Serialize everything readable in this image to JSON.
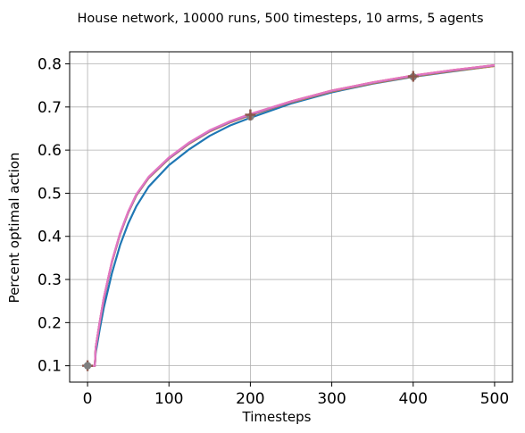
{
  "chart_data": {
    "type": "line",
    "title": "House network, 10000 runs, 500 timesteps, 10 arms, 5 agents",
    "xlabel": "Timesteps",
    "ylabel": "Percent optimal action",
    "xlim": [
      -22,
      522
    ],
    "ylim": [
      0.062,
      0.828
    ],
    "xticks": [
      0,
      100,
      200,
      300,
      400,
      500
    ],
    "yticks": [
      0.1,
      0.2,
      0.3,
      0.4,
      0.5,
      0.6,
      0.7,
      0.8
    ],
    "xtick_labels": [
      "0",
      "100",
      "200",
      "300",
      "400",
      "500"
    ],
    "ytick_labels": [
      "0.1",
      "0.2",
      "0.3",
      "0.4",
      "0.5",
      "0.6",
      "0.7",
      "0.8"
    ],
    "grid": true,
    "legend": "none",
    "series": [
      {
        "color": "#1f77b4",
        "x": [
          0,
          9,
          10,
          15,
          20,
          30,
          40,
          50,
          60,
          75,
          100,
          125,
          150,
          175,
          200,
          250,
          300,
          350,
          400,
          450,
          500
        ],
        "y": [
          0.1,
          0.1,
          0.13,
          0.185,
          0.235,
          0.315,
          0.38,
          0.43,
          0.47,
          0.515,
          0.565,
          0.602,
          0.633,
          0.657,
          0.675,
          0.708,
          0.734,
          0.754,
          0.77,
          0.783,
          0.795
        ]
      },
      {
        "color": "#ff7f0e",
        "x": [
          0,
          9,
          10,
          15,
          20,
          30,
          40,
          50,
          60,
          75,
          100,
          125,
          150,
          175,
          200,
          250,
          300,
          350,
          400,
          450,
          500
        ],
        "y": [
          0.1,
          0.1,
          0.14,
          0.2,
          0.255,
          0.34,
          0.405,
          0.455,
          0.495,
          0.535,
          0.58,
          0.615,
          0.643,
          0.664,
          0.681,
          0.711,
          0.736,
          0.755,
          0.771,
          0.784,
          0.795
        ]
      },
      {
        "color": "#2ca02c",
        "x": [
          0,
          9,
          10,
          15,
          20,
          30,
          40,
          50,
          60,
          75,
          100,
          125,
          150,
          175,
          200,
          250,
          300,
          350,
          400,
          450,
          500
        ],
        "y": [
          0.1,
          0.1,
          0.141,
          0.201,
          0.256,
          0.341,
          0.406,
          0.456,
          0.496,
          0.536,
          0.581,
          0.616,
          0.644,
          0.665,
          0.682,
          0.712,
          0.737,
          0.756,
          0.772,
          0.785,
          0.796
        ]
      },
      {
        "color": "#d62728",
        "x": [
          0,
          9,
          10,
          15,
          20,
          30,
          40,
          50,
          60,
          75,
          100,
          125,
          150,
          175,
          200,
          250,
          300,
          350,
          400,
          450,
          500
        ],
        "y": [
          0.1,
          0.1,
          0.142,
          0.202,
          0.257,
          0.342,
          0.407,
          0.457,
          0.497,
          0.537,
          0.582,
          0.617,
          0.645,
          0.666,
          0.683,
          0.713,
          0.738,
          0.757,
          0.773,
          0.786,
          0.797
        ]
      },
      {
        "color": "#9467bd",
        "x": [
          0,
          9,
          10,
          15,
          20,
          30,
          40,
          50,
          60,
          75,
          100,
          125,
          150,
          175,
          200,
          250,
          300,
          350,
          400,
          450,
          500
        ],
        "y": [
          0.1,
          0.1,
          0.141,
          0.201,
          0.256,
          0.341,
          0.406,
          0.456,
          0.496,
          0.536,
          0.581,
          0.616,
          0.644,
          0.665,
          0.682,
          0.712,
          0.737,
          0.756,
          0.772,
          0.785,
          0.796
        ]
      },
      {
        "color": "#e377c2",
        "x": [
          0,
          9,
          10,
          15,
          20,
          30,
          40,
          50,
          60,
          75,
          100,
          125,
          150,
          175,
          200,
          250,
          300,
          350,
          400,
          450,
          500
        ],
        "y": [
          0.1,
          0.1,
          0.142,
          0.203,
          0.258,
          0.343,
          0.408,
          0.458,
          0.498,
          0.538,
          0.583,
          0.618,
          0.646,
          0.667,
          0.684,
          0.713,
          0.738,
          0.757,
          0.773,
          0.786,
          0.797
        ]
      }
    ],
    "markers": [
      {
        "x": 0,
        "y": 0.1,
        "color": "#8c564b",
        "shape": "plus"
      },
      {
        "x": 0,
        "y": 0.1,
        "color": "#7f7f7f",
        "shape": "circle"
      },
      {
        "x": 200,
        "y": 0.677,
        "color": "#7f7f7f",
        "shape": "circle"
      },
      {
        "x": 200,
        "y": 0.682,
        "color": "#8c564b",
        "shape": "plus"
      },
      {
        "x": 400,
        "y": 0.77,
        "color": "#7f7f7f",
        "shape": "circle"
      },
      {
        "x": 400,
        "y": 0.771,
        "color": "#8c564b",
        "shape": "plus"
      }
    ]
  }
}
